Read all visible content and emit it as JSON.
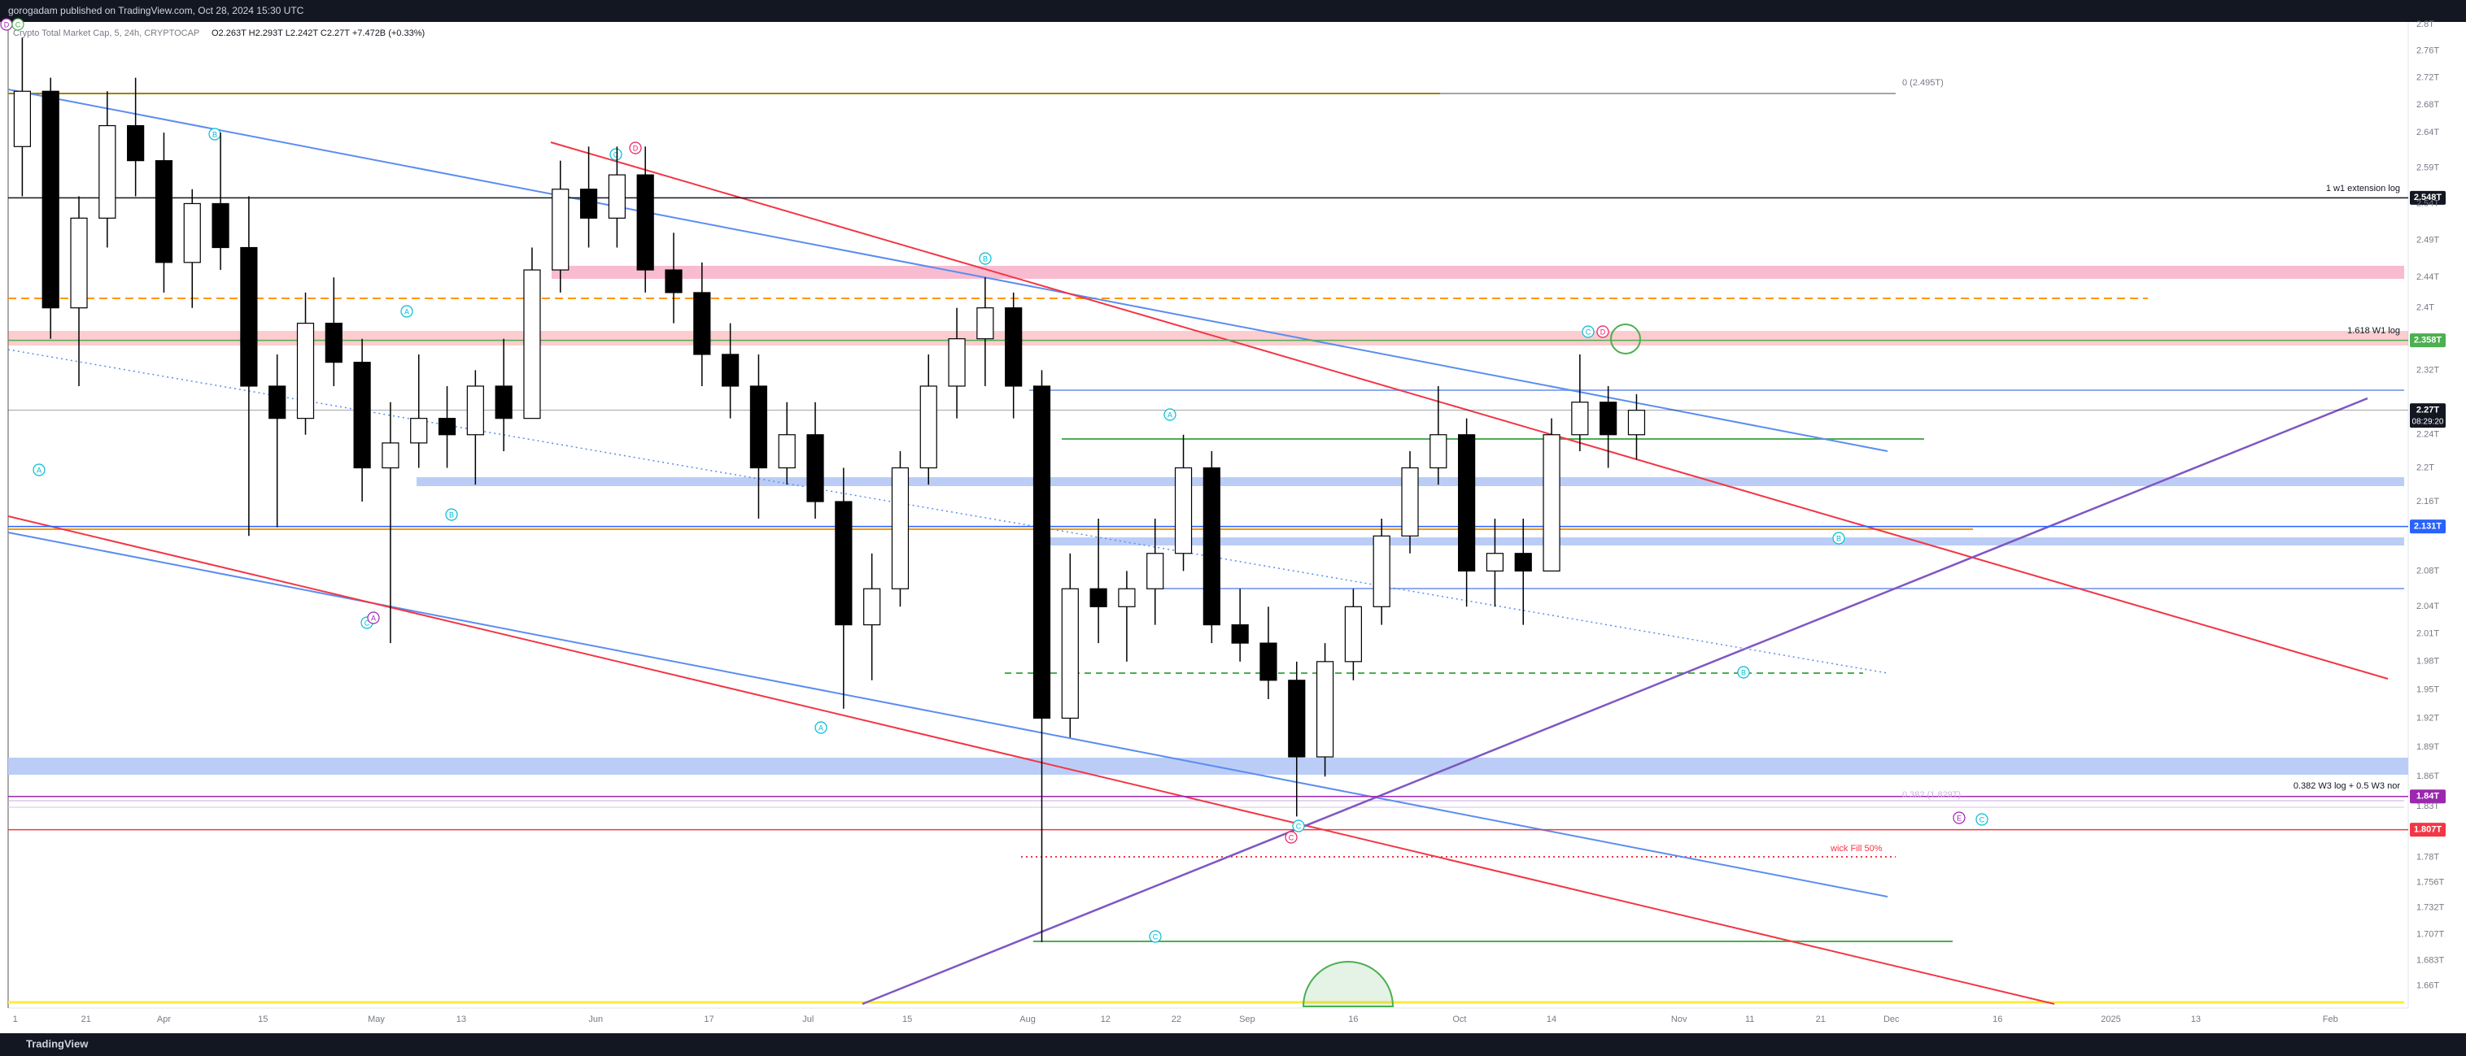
{
  "header": "gorogadam published on TradingView.com, Oct 28, 2024 15:30 UTC",
  "footer": "TradingView",
  "chart_data": {
    "type": "candlestick",
    "title": "Crypto Total Market Cap, 5, 24h, CRYPTOCAP",
    "ohlc_header": "O2.263T H2.293T L2.242T C2.27T +7.472B (+0.33%)",
    "x": [
      "2024-03-12",
      "2024-03-16",
      "2024-03-20",
      "2024-03-24",
      "2024-03-28",
      "2024-04-01",
      "2024-04-05",
      "2024-04-09",
      "2024-04-13",
      "2024-04-17",
      "2024-04-21",
      "2024-04-25",
      "2024-04-29",
      "2024-05-03",
      "2024-05-07",
      "2024-05-11",
      "2024-05-15",
      "2024-05-19",
      "2024-05-23",
      "2024-05-27",
      "2024-05-31",
      "2024-06-04",
      "2024-06-08",
      "2024-06-12",
      "2024-06-16",
      "2024-06-20",
      "2024-06-24",
      "2024-06-28",
      "2024-07-02",
      "2024-07-06",
      "2024-07-10",
      "2024-07-14",
      "2024-07-18",
      "2024-07-22",
      "2024-07-26",
      "2024-07-30",
      "2024-08-03",
      "2024-08-07",
      "2024-08-11",
      "2024-08-15",
      "2024-08-19",
      "2024-08-23",
      "2024-08-27",
      "2024-08-31",
      "2024-09-04",
      "2024-09-08",
      "2024-09-12",
      "2024-09-16",
      "2024-09-20",
      "2024-09-24",
      "2024-09-28",
      "2024-10-02",
      "2024-10-06",
      "2024-10-10",
      "2024-10-14",
      "2024-10-18",
      "2024-10-22",
      "2024-10-26"
    ],
    "open": [
      2.62,
      2.7,
      2.4,
      2.52,
      2.65,
      2.6,
      2.46,
      2.54,
      2.48,
      2.3,
      2.26,
      2.38,
      2.33,
      2.2,
      2.23,
      2.26,
      2.24,
      2.3,
      2.26,
      2.45,
      2.56,
      2.52,
      2.58,
      2.45,
      2.42,
      2.34,
      2.3,
      2.2,
      2.24,
      2.16,
      2.02,
      2.06,
      2.2,
      2.3,
      2.36,
      2.4,
      2.3,
      1.92,
      2.06,
      2.04,
      2.06,
      2.1,
      2.2,
      2.02,
      2.0,
      1.96,
      1.88,
      1.98,
      2.04,
      2.12,
      2.2,
      2.24,
      2.08,
      2.1,
      2.08,
      2.24,
      2.28,
      2.24
    ],
    "high": [
      2.78,
      2.72,
      2.55,
      2.7,
      2.72,
      2.64,
      2.56,
      2.64,
      2.55,
      2.34,
      2.42,
      2.44,
      2.36,
      2.28,
      2.34,
      2.3,
      2.32,
      2.36,
      2.48,
      2.6,
      2.62,
      2.62,
      2.62,
      2.5,
      2.46,
      2.38,
      2.34,
      2.28,
      2.28,
      2.2,
      2.1,
      2.22,
      2.34,
      2.4,
      2.44,
      2.42,
      2.32,
      2.1,
      2.14,
      2.08,
      2.14,
      2.24,
      2.22,
      2.06,
      2.04,
      1.98,
      2.0,
      2.06,
      2.14,
      2.22,
      2.3,
      2.26,
      2.14,
      2.14,
      2.26,
      2.34,
      2.3,
      2.29
    ],
    "low": [
      2.55,
      2.36,
      2.3,
      2.48,
      2.55,
      2.42,
      2.4,
      2.45,
      2.12,
      2.13,
      2.24,
      2.3,
      2.16,
      2.0,
      2.2,
      2.2,
      2.18,
      2.22,
      2.26,
      2.42,
      2.48,
      2.48,
      2.42,
      2.38,
      2.3,
      2.26,
      2.14,
      2.18,
      2.14,
      1.93,
      1.96,
      2.04,
      2.18,
      2.26,
      2.3,
      2.26,
      1.7,
      1.9,
      2.0,
      1.98,
      2.02,
      2.08,
      2.0,
      1.98,
      1.94,
      1.82,
      1.86,
      1.96,
      2.02,
      2.1,
      2.18,
      2.04,
      2.04,
      2.02,
      2.08,
      2.22,
      2.2,
      2.21
    ],
    "close": [
      2.7,
      2.4,
      2.52,
      2.65,
      2.6,
      2.46,
      2.54,
      2.48,
      2.3,
      2.26,
      2.38,
      2.33,
      2.2,
      2.23,
      2.26,
      2.24,
      2.3,
      2.26,
      2.45,
      2.56,
      2.52,
      2.58,
      2.45,
      2.42,
      2.34,
      2.3,
      2.2,
      2.24,
      2.16,
      2.02,
      2.06,
      2.2,
      2.3,
      2.36,
      2.4,
      2.3,
      1.92,
      2.06,
      2.04,
      2.06,
      2.1,
      2.2,
      2.02,
      2.0,
      1.96,
      1.88,
      1.98,
      2.04,
      2.12,
      2.2,
      2.24,
      2.08,
      2.1,
      2.08,
      2.24,
      2.28,
      2.24,
      2.27
    ],
    "up_color": "#ffffff",
    "down_color": "#000000",
    "log_scale": true,
    "grid": false,
    "xlim": [
      "2024-03-10",
      "2025-02-12"
    ],
    "xticks": [
      {
        "value": "2024-03-11",
        "label": "1"
      },
      {
        "value": "2024-03-21",
        "label": "21"
      },
      {
        "value": "2024-04-01",
        "label": "Apr"
      },
      {
        "value": "2024-04-15",
        "label": "15"
      },
      {
        "value": "2024-05-01",
        "label": "May"
      },
      {
        "value": "2024-05-13",
        "label": "13"
      },
      {
        "value": "2024-06-01",
        "label": "Jun"
      },
      {
        "value": "2024-06-17",
        "label": "17"
      },
      {
        "value": "2024-07-01",
        "label": "Jul"
      },
      {
        "value": "2024-07-15",
        "label": "15"
      },
      {
        "value": "2024-08-01",
        "label": "Aug"
      },
      {
        "value": "2024-08-12",
        "label": "12"
      },
      {
        "value": "2024-08-22",
        "label": "22"
      },
      {
        "value": "2024-09-01",
        "label": "Sep"
      },
      {
        "value": "2024-09-16",
        "label": "16"
      },
      {
        "value": "2024-10-01",
        "label": "Oct"
      },
      {
        "value": "2024-10-14",
        "label": "14"
      },
      {
        "value": "2024-11-01",
        "label": "Nov"
      },
      {
        "value": "2024-11-11",
        "label": "11"
      },
      {
        "value": "2024-11-21",
        "label": "21"
      },
      {
        "value": "2024-12-01",
        "label": "Dec"
      },
      {
        "value": "2024-12-16",
        "label": "16"
      },
      {
        "value": "2025-01-01",
        "label": "2025"
      },
      {
        "value": "2025-01-13",
        "label": "13"
      },
      {
        "value": "2025-02-01",
        "label": "Feb"
      }
    ],
    "ylim": [
      1.64,
      2.8
    ],
    "yticks": [
      {
        "value": 2.8,
        "label": "2.8T"
      },
      {
        "value": 2.76,
        "label": "2.76T"
      },
      {
        "value": 2.72,
        "label": "2.72T"
      },
      {
        "value": 2.68,
        "label": "2.68T"
      },
      {
        "value": 2.64,
        "label": "2.64T"
      },
      {
        "value": 2.59,
        "label": "2.59T"
      },
      {
        "value": 2.54,
        "label": "2.54T"
      },
      {
        "value": 2.49,
        "label": "2.49T"
      },
      {
        "value": 2.44,
        "label": "2.44T"
      },
      {
        "value": 2.4,
        "label": "2.4T"
      },
      {
        "value": 2.32,
        "label": "2.32T"
      },
      {
        "value": 2.24,
        "label": "2.24T"
      },
      {
        "value": 2.2,
        "label": "2.2T"
      },
      {
        "value": 2.16,
        "label": "2.16T"
      },
      {
        "value": 2.08,
        "label": "2.08T"
      },
      {
        "value": 2.04,
        "label": "2.04T"
      },
      {
        "value": 2.01,
        "label": "2.01T"
      },
      {
        "value": 1.98,
        "label": "1.98T"
      },
      {
        "value": 1.95,
        "label": "1.95T"
      },
      {
        "value": 1.92,
        "label": "1.92T"
      },
      {
        "value": 1.89,
        "label": "1.89T"
      },
      {
        "value": 1.86,
        "label": "1.86T"
      },
      {
        "value": 1.83,
        "label": "1.83T"
      },
      {
        "value": 1.78,
        "label": "1.78T"
      },
      {
        "value": 1.756,
        "label": "1.756T"
      },
      {
        "value": 1.732,
        "label": "1.732T"
      },
      {
        "value": 1.707,
        "label": "1.707T"
      },
      {
        "value": 1.683,
        "label": "1.683T"
      },
      {
        "value": 1.66,
        "label": "1.66T"
      }
    ],
    "price_labels": [
      {
        "value": 2.548,
        "label": "2.548T",
        "color": "#131722"
      },
      {
        "value": 2.358,
        "label": "2.358T",
        "color": "#4caf50"
      },
      {
        "value": 2.27,
        "label": "2.27T",
        "color": "#131722"
      },
      {
        "value": 2.131,
        "label": "2.131T",
        "color": "#2962ff"
      },
      {
        "value": 1.84,
        "label": "1.84T",
        "color": "#9c27b0"
      },
      {
        "value": 1.807,
        "label": "1.807T",
        "color": "#f23645"
      }
    ],
    "countdown": "08:29:20",
    "annotations": [
      "0 (2.495T)",
      "1 w1 extension log",
      "1.618 W1 log",
      "0.382 W3 log + 0.5 W3 nor",
      "0.382 (1.829T)",
      "wick Fill 50%"
    ],
    "wave_labels": [
      "D",
      "C",
      "A",
      "B",
      "A",
      "B",
      "C",
      "A",
      "C",
      "D",
      "B",
      "A",
      "A",
      "C",
      "D",
      "B",
      "B",
      "C",
      "C",
      "C",
      "E",
      "C"
    ]
  }
}
